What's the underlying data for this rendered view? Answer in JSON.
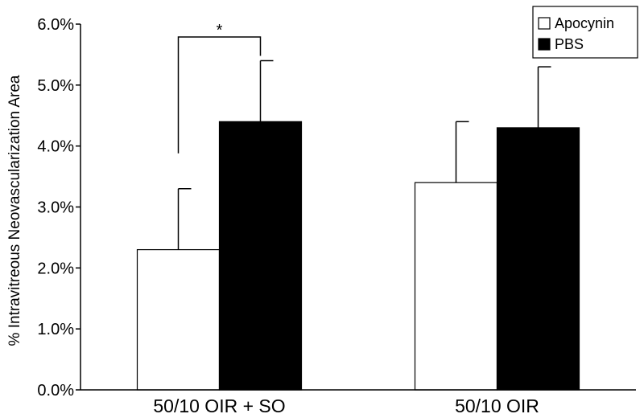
{
  "chart_data": {
    "type": "bar",
    "title": "",
    "xlabel": "",
    "ylabel": "% Intravitreous Neovascularization Area",
    "ylim": [
      0,
      0.06
    ],
    "yticks": [
      "0.0%",
      "1.0%",
      "2.0%",
      "3.0%",
      "4.0%",
      "5.0%",
      "6.0%"
    ],
    "categories": [
      "50/10 OIR + SO",
      "50/10 OIR"
    ],
    "series": [
      {
        "name": "Apocynin",
        "values": [
          0.023,
          0.034
        ],
        "errors": [
          0.01,
          0.01
        ],
        "color": "#ffffff"
      },
      {
        "name": "PBS",
        "values": [
          0.044,
          0.043
        ],
        "errors": [
          0.01,
          0.01
        ],
        "color": "#000000"
      }
    ],
    "legend_position": "top-right",
    "grid": false,
    "annotations": [
      {
        "text": "*",
        "category": "50/10 OIR + SO",
        "between": [
          "Apocynin",
          "PBS"
        ]
      }
    ]
  }
}
